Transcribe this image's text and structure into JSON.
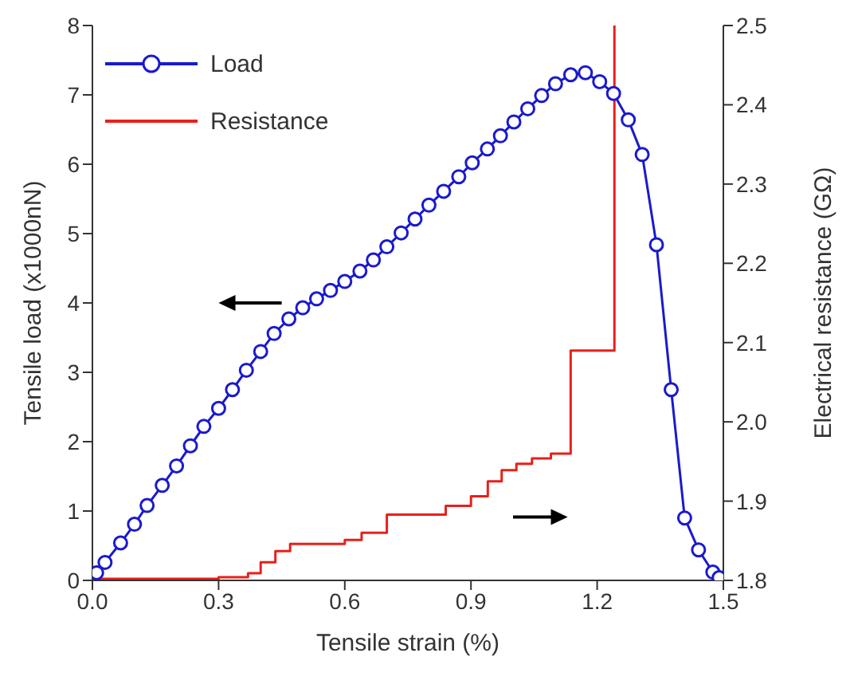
{
  "chart_data": {
    "type": "line",
    "xlabel": "Tensile strain (%)",
    "ylabel": "Tensile load (x1000nN)",
    "y2label": "Electrical resistance (GΩ)",
    "xlim": [
      0,
      1.5
    ],
    "xticks": [
      {
        "value": 0,
        "label": "0.0"
      },
      0.3,
      0.6,
      0.9,
      1.2,
      {
        "value": 1.5,
        "label": "1.5"
      }
    ],
    "ylim": [
      0,
      8
    ],
    "yticks": [
      0,
      1,
      2,
      3,
      4,
      5,
      6,
      7,
      8
    ],
    "y2lim": [
      1.8,
      2.5
    ],
    "y2ticks": [
      1.8,
      1.9,
      {
        "value": 2,
        "label": "2.0"
      },
      2.1,
      2.2,
      2.3,
      2.4,
      2.5
    ],
    "legend": "top left",
    "series": [
      {
        "name": "Load",
        "color": "#1a1acc",
        "marker": "circle",
        "x": [
          0.01,
          0.03,
          0.067,
          0.1,
          0.13,
          0.166,
          0.2,
          0.233,
          0.265,
          0.3,
          0.333,
          0.366,
          0.4,
          0.432,
          0.467,
          0.5,
          0.533,
          0.566,
          0.6,
          0.636,
          0.668,
          0.7,
          0.734,
          0.767,
          0.8,
          0.835,
          0.871,
          0.903,
          0.939,
          0.97,
          1.002,
          1.035,
          1.068,
          1.101,
          1.137,
          1.172,
          1.206,
          1.239,
          1.274,
          1.307,
          1.341,
          1.376,
          1.408,
          1.441,
          1.475,
          1.49
        ],
        "values": [
          0.11,
          0.26,
          0.54,
          0.81,
          1.08,
          1.37,
          1.65,
          1.94,
          2.22,
          2.48,
          2.75,
          3.03,
          3.3,
          3.56,
          3.77,
          3.93,
          4.06,
          4.18,
          4.31,
          4.46,
          4.62,
          4.81,
          5.01,
          5.21,
          5.41,
          5.61,
          5.82,
          6.02,
          6.22,
          6.41,
          6.61,
          6.8,
          6.99,
          7.16,
          7.29,
          7.32,
          7.19,
          7.02,
          6.64,
          6.14,
          4.84,
          2.75,
          0.9,
          0.44,
          0.12,
          0.04
        ]
      },
      {
        "name": "Resistance",
        "type": "step",
        "axis": "y2",
        "color": "#e8201a",
        "marker": "none",
        "x": [
          0,
          0.3,
          0.37,
          0.4,
          0.435,
          0.47,
          0.6,
          0.64,
          0.7,
          0.84,
          0.9,
          0.94,
          0.973,
          1.008,
          1.045,
          1.09,
          1.137,
          1.241,
          1.241
        ],
        "values": [
          1.802,
          1.804,
          1.809,
          1.823,
          1.837,
          1.846,
          1.851,
          1.86,
          1.883,
          1.894,
          1.906,
          1.925,
          1.939,
          1.947,
          1.954,
          1.96,
          2.09,
          2.097,
          2.5
        ]
      }
    ]
  }
}
